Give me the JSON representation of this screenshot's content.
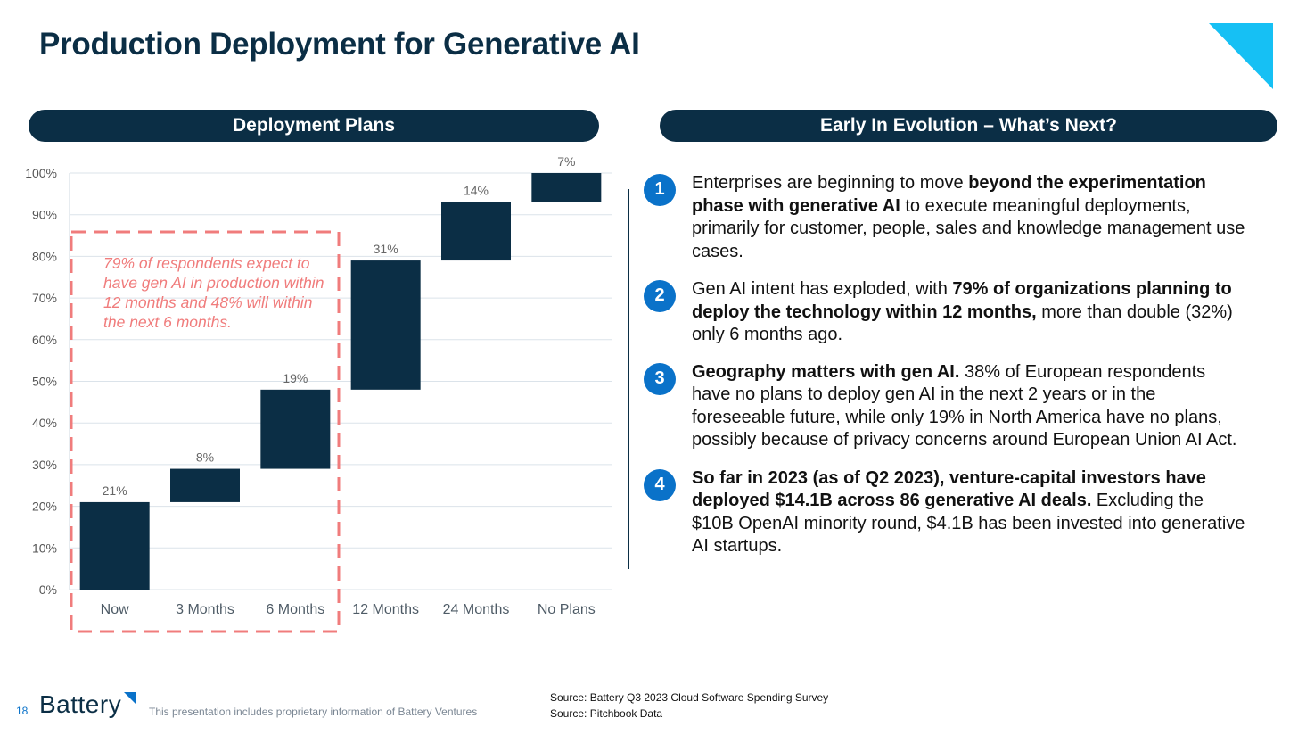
{
  "title": "Production Deployment for Generative AI",
  "left_header": "Deployment Plans",
  "right_header": "Early In Evolution – What’s Next?",
  "callout_text": "79% of respondents expect to have gen AI in production within 12 months and 48% will within the next 6 months.",
  "points": [
    {
      "num": "1",
      "html": "Enterprises are beginning to move <b>beyond the experimentation phase with generative AI</b> to execute meaningful deployments, primarily for customer, people, sales and knowledge management use cases."
    },
    {
      "num": "2",
      "html": "Gen AI intent has exploded, with <b>79% of organizations planning to deploy the technology within 12 months,</b> more than double (32%) only 6 months ago."
    },
    {
      "num": "3",
      "html": "<b>Geography matters with gen AI.</b> 38% of European respondents have no plans to deploy gen AI in the next 2 years or in the foreseeable future, while only 19% in North America have no plans, possibly because of privacy concerns around European Union AI Act."
    },
    {
      "num": "4",
      "html": "<b>So far in 2023 (as of Q2 2023), venture-capital investors have deployed $14.1B across 86 generative AI deals.</b> Excluding the $10B OpenAI minority round, $4.1B has been invested into generative AI startups."
    }
  ],
  "footer": {
    "page_number": "18",
    "logo": "Battery",
    "disclaimer": "This presentation includes proprietary information of Battery Ventures",
    "sources": [
      "Source: Battery Q3 2023 Cloud Software Spending Survey",
      "Source: Pitchbook Data"
    ]
  },
  "colors": {
    "navy": "#0b2e45",
    "accent": "#0a72c9",
    "callout": "#f07c7c",
    "triangle": "#16c0f4"
  },
  "icons": {
    "corner": "triangle-decoration",
    "logo_mark": "battery-logo-mark"
  },
  "chart_data": {
    "type": "bar",
    "subtype": "waterfall",
    "categories": [
      "Now",
      "3 Months",
      "6 Months",
      "12 Months",
      "24 Months",
      "No Plans"
    ],
    "values": [
      21,
      8,
      19,
      31,
      14,
      7
    ],
    "labels": [
      "21%",
      "8%",
      "19%",
      "31%",
      "14%",
      "7%"
    ],
    "ylim": [
      0,
      100
    ],
    "yticks": [
      0,
      10,
      20,
      30,
      40,
      50,
      60,
      70,
      80,
      90,
      100
    ],
    "ytick_labels": [
      "0%",
      "10%",
      "20%",
      "30%",
      "40%",
      "50%",
      "60%",
      "70%",
      "80%",
      "90%",
      "100%"
    ],
    "grid": true,
    "highlight_categories": [
      "Now",
      "3 Months",
      "6 Months"
    ]
  }
}
